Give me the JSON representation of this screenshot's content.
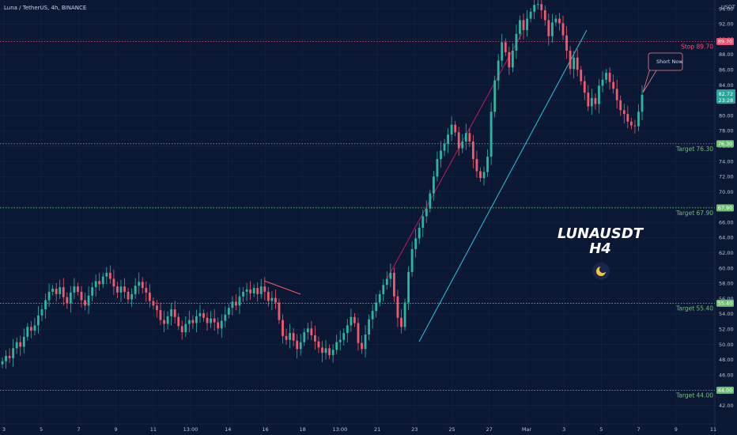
{
  "header": {
    "title": "Luna / TetherUS, 4h, BINANCE",
    "currency": "USDT"
  },
  "annotation": {
    "line1": "LUNAUSDT",
    "line2": "H4",
    "callout": "Short Now"
  },
  "price_tag": {
    "value": "82.72",
    "countdown": "23:28"
  },
  "colors": {
    "up": "#2bb6a0",
    "down": "#ef5a6f",
    "stop": "#f0506e",
    "target": "#6fbf73",
    "channel_top": "#c2185b",
    "channel_bottom": "#26c6da",
    "background": "#0b1834"
  },
  "chart_data": {
    "type": "candlestick",
    "title": "Luna / TetherUS, 4h, BINANCE",
    "ylabel": "USDT",
    "ylim": [
      40,
      96
    ],
    "y_ticks": [
      "42.00",
      "44.00",
      "46.00",
      "48.00",
      "50.00",
      "52.00",
      "54.00",
      "56.00",
      "58.00",
      "60.00",
      "62.00",
      "64.00",
      "66.00",
      "68.00",
      "70.00",
      "72.00",
      "74.00",
      "76.00",
      "78.00",
      "80.00",
      "82.00",
      "84.00",
      "86.00",
      "88.00",
      "90.00",
      "92.00",
      "94.00"
    ],
    "x_ticks": [
      "3",
      "5",
      "7",
      "9",
      "11",
      "13:00",
      "14",
      "16",
      "18",
      "13:00",
      "21",
      "23",
      "25",
      "27",
      "Mar",
      "3",
      "5",
      "7",
      "9",
      "11"
    ],
    "levels": [
      {
        "label": "Stop 89.70",
        "tag": "89.70",
        "value": 89.7,
        "kind": "stop"
      },
      {
        "label": "Target 76.30",
        "tag": "76.30",
        "value": 76.3,
        "kind": "target"
      },
      {
        "label": "Target 67.90",
        "tag": "67.90",
        "value": 67.9,
        "kind": "target"
      },
      {
        "label": "Target 55.40",
        "tag": "55.40",
        "value": 55.4,
        "kind": "target"
      },
      {
        "label": "Target 44.00",
        "tag": "44.00",
        "value": 44.0,
        "kind": "target"
      }
    ],
    "last_price": 82.72,
    "closes": [
      47.8,
      48.5,
      48.2,
      49.5,
      50.3,
      49.7,
      51.0,
      52.3,
      51.8,
      52.5,
      53.8,
      54.6,
      55.8,
      56.9,
      57.3,
      56.6,
      57.5,
      56.2,
      55.4,
      56.8,
      57.6,
      56.9,
      55.8,
      55.1,
      56.4,
      57.5,
      58.3,
      57.9,
      58.9,
      59.4,
      58.6,
      57.6,
      56.8,
      57.6,
      56.9,
      55.9,
      56.6,
      57.7,
      58.2,
      57.4,
      56.8,
      55.7,
      55.1,
      54.5,
      53.2,
      52.7,
      53.7,
      54.6,
      53.6,
      52.4,
      51.6,
      52.7,
      53.2,
      52.8,
      53.7,
      54.1,
      53.5,
      52.8,
      53.4,
      52.9,
      52.1,
      53.1,
      53.9,
      54.8,
      55.6,
      55.1,
      56.3,
      56.9,
      57.2,
      56.7,
      57.4,
      56.6,
      57.6,
      56.9,
      55.7,
      56.1,
      55.5,
      53.2,
      51.1,
      50.6,
      51.5,
      50.5,
      49.4,
      50.3,
      51.6,
      52.1,
      51.2,
      50.4,
      49.6,
      48.9,
      49.5,
      48.6,
      49.3,
      50.3,
      50.6,
      51.5,
      52.5,
      53.6,
      52.8,
      50.2,
      49.4,
      51.3,
      53.3,
      54.4,
      55.5,
      56.6,
      57.8,
      58.6,
      59.4,
      56.3,
      53.5,
      52.3,
      55.5,
      59.5,
      62.5,
      63.9,
      65.3,
      66.8,
      67.8,
      69.8,
      72.0,
      74.3,
      75.4,
      76.3,
      77.5,
      78.8,
      77.8,
      75.7,
      76.6,
      77.7,
      76.6,
      74.3,
      72.7,
      71.8,
      72.6,
      74.6,
      80.5,
      84.6,
      87.2,
      89.6,
      88.3,
      86.3,
      88.5,
      90.7,
      92.5,
      91.2,
      92.7,
      93.6,
      94.5,
      94.6,
      93.8,
      92.5,
      90.4,
      92.2,
      92.7,
      92.1,
      90.5,
      88.5,
      86.1,
      87.6,
      86.0,
      84.5,
      83.0,
      81.2,
      82.3,
      81.5,
      83.9,
      84.7,
      85.6,
      84.4,
      83.5,
      82.0,
      80.7,
      80.2,
      79.2,
      78.7,
      78.6,
      80.5,
      82.72
    ]
  }
}
